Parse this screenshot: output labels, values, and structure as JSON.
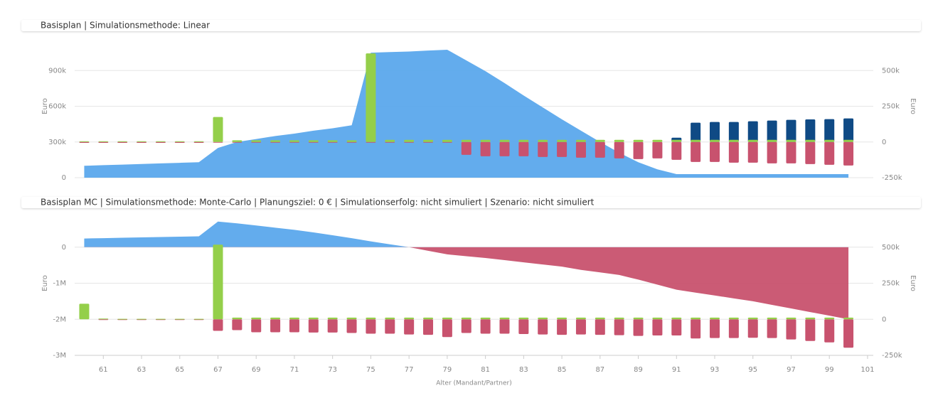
{
  "chart_data": [
    {
      "type": "area_bar",
      "title": "Basisplan  |  Simulationsmethode: Linear",
      "ylabel": "Euro",
      "y2label": "Euro",
      "x": [
        60,
        61,
        62,
        63,
        64,
        65,
        66,
        67,
        68,
        69,
        70,
        71,
        72,
        73,
        74,
        75,
        76,
        77,
        78,
        79,
        80,
        81,
        82,
        83,
        84,
        85,
        86,
        87,
        88,
        89,
        90,
        91,
        92,
        93,
        94,
        95,
        96,
        97,
        98,
        99,
        100
      ],
      "xlim": [
        59.5,
        101.3
      ],
      "ylim": [
        0,
        1200000
      ],
      "yticks": [
        0,
        {
          "value": 300000,
          "label": "300k"
        },
        {
          "value": 600000,
          "label": "600k"
        },
        {
          "value": 900000,
          "label": "900k"
        }
      ],
      "y2lim": [
        -250000,
        750000
      ],
      "y2ticks": [
        {
          "value": -250000,
          "label": "-250k"
        },
        0,
        {
          "value": 250000,
          "label": "250k"
        },
        {
          "value": 500000,
          "label": "500k"
        }
      ],
      "grid": true,
      "series": [
        {
          "type": "area",
          "axis": "y",
          "color": "#5ba8ec",
          "values": [
            100000,
            105000,
            110000,
            115000,
            120000,
            125000,
            130000,
            250000,
            300000,
            325000,
            350000,
            370000,
            395000,
            415000,
            440000,
            1050000,
            1055000,
            1060000,
            1068000,
            1075000,
            985000,
            895000,
            795000,
            690000,
            590000,
            490000,
            395000,
            300000,
            210000,
            130000,
            70000,
            30000,
            30000,
            30000,
            30000,
            30000,
            30000,
            30000,
            30000,
            30000,
            30000
          ]
        },
        {
          "type": "bar",
          "axis": "y2",
          "color": "#0f4a85",
          "values": [
            null,
            null,
            null,
            null,
            null,
            null,
            null,
            null,
            null,
            null,
            null,
            null,
            null,
            null,
            null,
            null,
            null,
            null,
            null,
            null,
            null,
            null,
            null,
            null,
            null,
            null,
            null,
            null,
            null,
            null,
            null,
            30000,
            135000,
            140000,
            140000,
            145000,
            150000,
            155000,
            158000,
            160000,
            165000
          ]
        },
        {
          "type": "bar",
          "axis": "y2",
          "color": "#c8526e",
          "values": [
            -6000,
            -6000,
            -6000,
            -6000,
            -6000,
            -6000,
            -6000,
            -5000,
            -4000,
            -4000,
            -4000,
            -4000,
            -4000,
            -4000,
            -4000,
            -4000,
            -4000,
            -4000,
            -4000,
            -4000,
            -90000,
            -100000,
            -100000,
            -100000,
            -105000,
            -105000,
            -110000,
            -110000,
            -115000,
            -120000,
            -115000,
            -125000,
            -140000,
            -140000,
            -145000,
            -145000,
            -150000,
            -150000,
            -155000,
            -160000,
            -165000
          ]
        },
        {
          "type": "bar",
          "axis": "y2",
          "color": "#94cf4a",
          "values": [
            5000,
            5000,
            5000,
            5000,
            5000,
            5000,
            5000,
            175000,
            12000,
            12000,
            12000,
            12000,
            12000,
            12000,
            12000,
            620000,
            15000,
            15000,
            15000,
            15000,
            15000,
            15000,
            15000,
            15000,
            15000,
            15000,
            15000,
            15000,
            15000,
            15000,
            15000,
            15000,
            15000,
            15000,
            15000,
            15000,
            15000,
            15000,
            15000,
            15000,
            15000
          ]
        }
      ]
    },
    {
      "type": "area_bar",
      "title": "Basisplan MC  |  Simulationsmethode: Monte-Carlo  |  Planungsziel: 0 €  |  Simulationserfolg: nicht simuliert  |  Szenario: nicht simuliert",
      "ylabel": "Euro",
      "y2label": "Euro",
      "xlabel": "Alter (Mandant/Partner)",
      "x": [
        60,
        61,
        62,
        63,
        64,
        65,
        66,
        67,
        68,
        69,
        70,
        71,
        72,
        73,
        74,
        75,
        76,
        77,
        78,
        79,
        80,
        81,
        82,
        83,
        84,
        85,
        86,
        87,
        88,
        89,
        90,
        91,
        92,
        93,
        94,
        95,
        96,
        97,
        98,
        99,
        100
      ],
      "xlim": [
        59.5,
        101.3
      ],
      "xticks": [
        61,
        63,
        65,
        67,
        69,
        71,
        73,
        75,
        77,
        79,
        81,
        83,
        85,
        87,
        89,
        91,
        93,
        95,
        97,
        99,
        101
      ],
      "ylim": [
        -3000000,
        1000000
      ],
      "yticks": [
        {
          "value": -3000000,
          "label": "-3M"
        },
        {
          "value": -2000000,
          "label": "-2M"
        },
        {
          "value": -1000000,
          "label": "-1M"
        },
        0
      ],
      "y2lim": [
        -250000,
        750000
      ],
      "y2ticks": [
        {
          "value": -250000,
          "label": "-250k"
        },
        0,
        {
          "value": 250000,
          "label": "250k"
        },
        {
          "value": 500000,
          "label": "500k"
        }
      ],
      "grid": true,
      "series": [
        {
          "type": "area",
          "axis": "y",
          "color": "#5ba8ec",
          "negative_color": "#c8526e",
          "values": [
            240000,
            250000,
            260000,
            270000,
            280000,
            290000,
            300000,
            710000,
            660000,
            600000,
            540000,
            480000,
            410000,
            330000,
            250000,
            160000,
            80000,
            0,
            -100000,
            -200000,
            -250000,
            -300000,
            -360000,
            -420000,
            -480000,
            -540000,
            -630000,
            -700000,
            -770000,
            -900000,
            -1040000,
            -1180000,
            -1260000,
            -1340000,
            -1420000,
            -1500000,
            -1600000,
            -1700000,
            -1800000,
            -1900000,
            -2000000
          ]
        },
        {
          "type": "bar",
          "axis": "y2",
          "color": "#c8526e",
          "values": [
            null,
            -3000,
            -3000,
            -3000,
            -3000,
            -3000,
            -3000,
            -80000,
            -75000,
            -90000,
            -90000,
            -90000,
            -92000,
            -92000,
            -95000,
            -100000,
            -100000,
            -105000,
            -108000,
            -123000,
            -95000,
            -100000,
            -100000,
            -102000,
            -105000,
            -108000,
            -105000,
            -108000,
            -110000,
            -115000,
            -112000,
            -112000,
            -133000,
            -130000,
            -130000,
            -128000,
            -130000,
            -140000,
            -150000,
            -160000,
            -197000
          ]
        },
        {
          "type": "bar",
          "axis": "y2",
          "color": "#94cf4a",
          "values": [
            108000,
            5000,
            3000,
            3000,
            3000,
            3000,
            3000,
            517000,
            12000,
            12000,
            12000,
            12000,
            12000,
            12000,
            12000,
            12000,
            12000,
            12000,
            12000,
            12000,
            12000,
            12000,
            12000,
            12000,
            12000,
            12000,
            12000,
            12000,
            12000,
            12000,
            12000,
            12000,
            12000,
            12000,
            12000,
            12000,
            12000,
            12000,
            12000,
            12000,
            12000
          ]
        }
      ]
    }
  ]
}
